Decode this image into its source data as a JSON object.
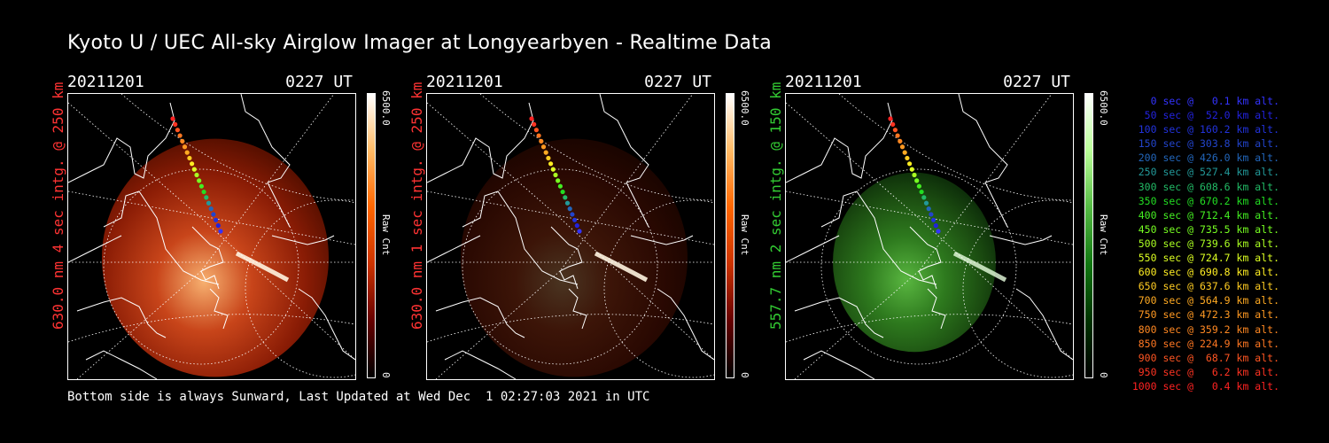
{
  "title": "Kyoto U / UEC All-sky Airglow Imager at Longyearbyen - Realtime Data",
  "panels": [
    {
      "date": "20211201",
      "time": "0227 UT",
      "side_label": "630.0 nm 4 sec intg. @ 250 km",
      "label_color": "#ff3333",
      "colorbar_max": "6500.0",
      "colorbar_label": "Raw Cnt",
      "colorbar_min": "0",
      "palette": "red",
      "intensity": 1.0
    },
    {
      "date": "20211201",
      "time": "0227 UT",
      "side_label": "630.0 nm 1 sec intg. @ 250 km",
      "label_color": "#ff3333",
      "colorbar_max": "6500.0",
      "colorbar_label": "Raw Cnt",
      "colorbar_min": "0",
      "palette": "red",
      "intensity": 0.3
    },
    {
      "date": "20211201",
      "time": "0227 UT",
      "side_label": "557.7 nm 2 sec intg. @ 150 km",
      "label_color": "#33cc33",
      "colorbar_max": "6500.0",
      "colorbar_label": "Raw Cnt",
      "colorbar_min": "0",
      "palette": "green",
      "intensity": 1.0
    }
  ],
  "legend": [
    {
      "text": "0 sec @   0.1 km alt.",
      "color": "#3333ff"
    },
    {
      "text": "50 sec @  52.0 km alt.",
      "color": "#2222dd"
    },
    {
      "text": "100 sec @ 160.2 km alt.",
      "color": "#2233dd"
    },
    {
      "text": "150 sec @ 303.8 km alt.",
      "color": "#2244cc"
    },
    {
      "text": "200 sec @ 426.0 km alt.",
      "color": "#2266bb"
    },
    {
      "text": "250 sec @ 527.4 km alt.",
      "color": "#229999"
    },
    {
      "text": "300 sec @ 608.6 km alt.",
      "color": "#22bb66"
    },
    {
      "text": "350 sec @ 670.2 km alt.",
      "color": "#22dd22"
    },
    {
      "text": "400 sec @ 712.4 km alt.",
      "color": "#44ee22"
    },
    {
      "text": "450 sec @ 735.5 km alt.",
      "color": "#77ff22"
    },
    {
      "text": "500 sec @ 739.6 km alt.",
      "color": "#aaff22"
    },
    {
      "text": "550 sec @ 724.7 km alt.",
      "color": "#ddff22"
    },
    {
      "text": "600 sec @ 690.8 km alt.",
      "color": "#ffee22"
    },
    {
      "text": "650 sec @ 637.6 km alt.",
      "color": "#ffcc22"
    },
    {
      "text": "700 sec @ 564.9 km alt.",
      "color": "#ffaa22"
    },
    {
      "text": "750 sec @ 472.3 km alt.",
      "color": "#ff9922"
    },
    {
      "text": "800 sec @ 359.2 km alt.",
      "color": "#ff8822"
    },
    {
      "text": "850 sec @ 224.9 km alt.",
      "color": "#ff7722"
    },
    {
      "text": "900 sec @  68.7 km alt.",
      "color": "#ff5522"
    },
    {
      "text": "950 sec @   6.2 km alt.",
      "color": "#ff3322"
    },
    {
      "text": "1000 sec @   0.4 km alt.",
      "color": "#ff2222"
    }
  ],
  "footer": "Bottom side is always Sunward, Last Updated at Wed Dec  1 02:27:03 2021 in UTC"
}
